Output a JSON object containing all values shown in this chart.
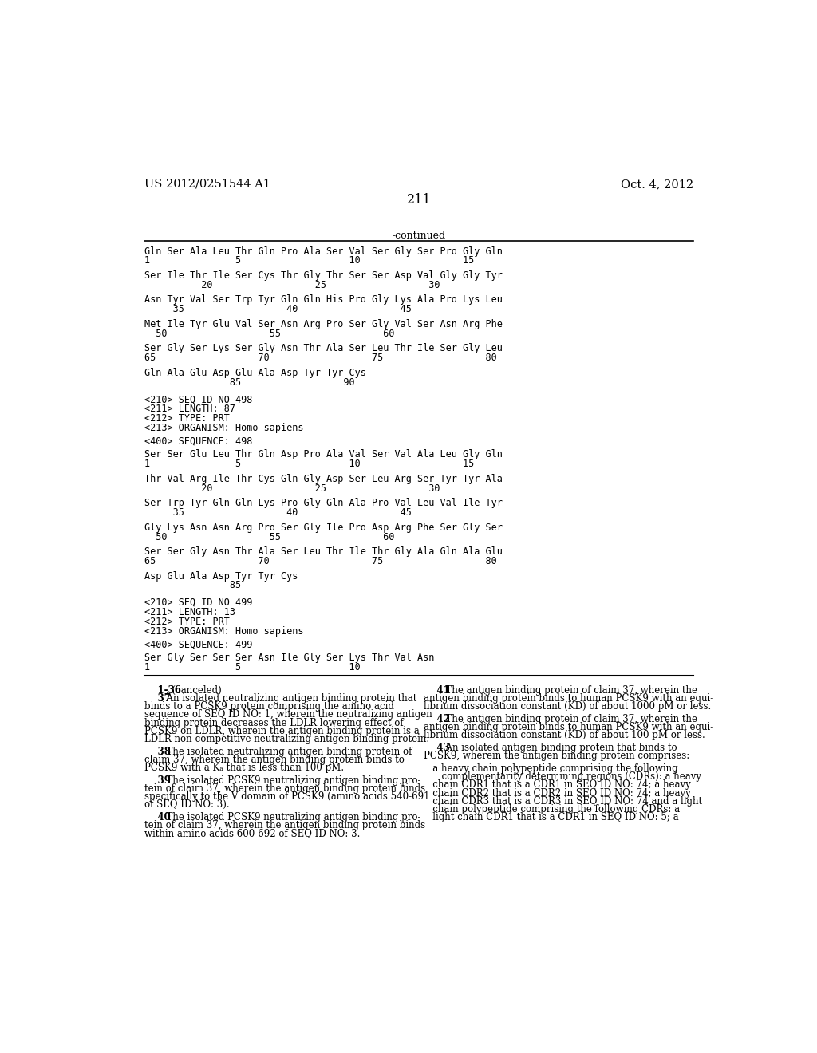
{
  "page_number": "211",
  "header_left": "US 2012/0251544 A1",
  "header_right": "Oct. 4, 2012",
  "continued_label": "-continued",
  "background_color": "#ffffff",
  "text_color": "#000000",
  "seq_lines_first": [
    "Gln Ser Ala Leu Thr Gln Pro Ala Ser Val Ser Gly Ser Pro Gly Gln",
    "1               5                   10                  15",
    "",
    "Ser Ile Thr Ile Ser Cys Thr Gly Thr Ser Ser Asp Val Gly Gly Tyr",
    "          20                  25                  30",
    "",
    "Asn Tyr Val Ser Trp Tyr Gln Gln His Pro Gly Lys Ala Pro Lys Leu",
    "     35                  40                  45",
    "",
    "Met Ile Tyr Glu Val Ser Asn Arg Pro Ser Gly Val Ser Asn Arg Phe",
    "  50                  55                  60",
    "",
    "Ser Gly Ser Lys Ser Gly Asn Thr Ala Ser Leu Thr Ile Ser Gly Leu",
    "65                  70                  75                  80",
    "",
    "Gln Ala Glu Asp Glu Ala Asp Tyr Tyr Cys",
    "               85                  90"
  ],
  "meta_498": [
    "<210> SEQ ID NO 498",
    "<211> LENGTH: 87",
    "<212> TYPE: PRT",
    "<213> ORGANISM: Homo sapiens"
  ],
  "seq400_498": "<400> SEQUENCE: 498",
  "seq_lines_498": [
    "Ser Ser Glu Leu Thr Gln Asp Pro Ala Val Ser Val Ala Leu Gly Gln",
    "1               5                   10                  15",
    "",
    "Thr Val Arg Ile Thr Cys Gln Gly Asp Ser Leu Arg Ser Tyr Tyr Ala",
    "          20                  25                  30",
    "",
    "Ser Trp Tyr Gln Gln Lys Pro Gly Gln Ala Pro Val Leu Val Ile Tyr",
    "     35                  40                  45",
    "",
    "Gly Lys Asn Asn Arg Pro Ser Gly Ile Pro Asp Arg Phe Ser Gly Ser",
    "  50                  55                  60",
    "",
    "Ser Ser Gly Asn Thr Ala Ser Leu Thr Ile Thr Gly Ala Gln Ala Glu",
    "65                  70                  75                  80",
    "",
    "Asp Glu Ala Asp Tyr Tyr Cys",
    "               85"
  ],
  "meta_499": [
    "<210> SEQ ID NO 499",
    "<211> LENGTH: 13",
    "<212> TYPE: PRT",
    "<213> ORGANISM: Homo sapiens"
  ],
  "seq400_499": "<400> SEQUENCE: 499",
  "seq_lines_499": [
    "Ser Gly Ser Ser Ser Asn Ile Gly Ser Lys Thr Val Asn",
    "1               5                   10"
  ],
  "left_col_lines": [
    [
      "bold",
      "    1-36",
      ". (canceled)"
    ],
    [
      "bold",
      "    37",
      ". An isolated neutralizing antigen binding protein that"
    ],
    [
      "normal",
      "binds to a PCSK9 protein comprising the amino acid"
    ],
    [
      "normal",
      "sequence of SEQ ID NO: 1, wherein the neutralizing antigen"
    ],
    [
      "normal",
      "binding protein decreases the LDLR lowering effect of"
    ],
    [
      "normal",
      "PCSK9 on LDLR, wherein the antigen binding protein is a"
    ],
    [
      "normal",
      "LDLR non-competitive neutralizing antigen binding protein."
    ],
    [
      "space",
      ""
    ],
    [
      "bold",
      "    38",
      ". The isolated neutralizing antigen binding protein of"
    ],
    [
      "normal",
      "claim 37, wherein the antigen binding protein binds to"
    ],
    [
      "normal",
      "PCSK9 with a Kₐ that is less than 100 pM."
    ],
    [
      "space",
      ""
    ],
    [
      "bold",
      "    39",
      ". The isolated PCSK9 neutralizing antigen binding pro-"
    ],
    [
      "normal",
      "tein of claim 37, wherein the antigen binding protein binds"
    ],
    [
      "normal",
      "specifically to the V domain of PCSK9 (amino acids 540-691"
    ],
    [
      "normal",
      "of SEQ ID NO: 3)."
    ],
    [
      "space",
      ""
    ],
    [
      "bold",
      "    40",
      ". The isolated PCSK9 neutralizing antigen binding pro-"
    ],
    [
      "normal",
      "tein of claim 37, wherein the antigen binding protein binds"
    ],
    [
      "normal",
      "within amino acids 600-692 of SEQ ID NO: 3."
    ]
  ],
  "right_col_lines": [
    [
      "bold",
      "    41",
      ". The antigen binding protein of claim 37, wherein the"
    ],
    [
      "normal",
      "antigen binding protein binds to human PCSK9 with an equi-"
    ],
    [
      "normal",
      "librium dissociation constant (KD) of about 1000 pM or less."
    ],
    [
      "space",
      ""
    ],
    [
      "bold",
      "    42",
      ". The antigen binding protein of claim 37, wherein the"
    ],
    [
      "normal",
      "antigen binding protein binds to human PCSK9 with an equi-"
    ],
    [
      "normal",
      "librium dissociation constant (KD) of about 100 pM or less."
    ],
    [
      "space",
      ""
    ],
    [
      "bold",
      "    43",
      ". An isolated antigen binding protein that binds to"
    ],
    [
      "normal",
      "PCSK9, wherein the antigen binding protein comprises:"
    ],
    [
      "space",
      ""
    ],
    [
      "normal",
      "   a heavy chain polypeptide comprising the following"
    ],
    [
      "normal",
      "      complementarity determining regions (CDRs): a heavy"
    ],
    [
      "normal",
      "   chain CDR1 that is a CDR1 in SEQ ID NO: 74; a heavy"
    ],
    [
      "normal",
      "   chain CDR2 that is a CDR2 in SEQ ID NO: 74; a heavy"
    ],
    [
      "normal",
      "   chain CDR3 that is a CDR3 in SEQ ID NO: 74 and a light"
    ],
    [
      "normal",
      "   chain polypeptide comprising the following CDRs: a"
    ],
    [
      "normal",
      "   light chain CDR1 that is a CDR1 in SEQ ID NO: 5; a"
    ]
  ]
}
